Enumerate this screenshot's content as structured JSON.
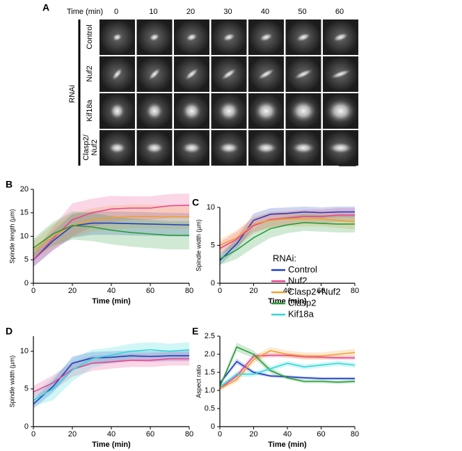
{
  "panel_a": {
    "label": "A",
    "time_label": "Time (min)",
    "times": [
      "0",
      "10",
      "20",
      "30",
      "40",
      "50",
      "60"
    ],
    "group": "RNAi",
    "rows": [
      "Control",
      "Nuf2",
      "Kif18a",
      "Clasp2/ Nuf2"
    ]
  },
  "legend_title": "RNAi:",
  "chart_data": [
    {
      "type": "line",
      "label": "B",
      "x_label": "Time (min)",
      "y_label": "Spindle length (µm)",
      "x": [
        0,
        10,
        20,
        30,
        40,
        50,
        60,
        70,
        80
      ],
      "xlim": [
        0,
        80
      ],
      "xticks": [
        0,
        20,
        40,
        60,
        80
      ],
      "ylim": [
        0,
        20
      ],
      "yticks": [
        0,
        5,
        10,
        15,
        20
      ],
      "series": [
        {
          "name": "Control",
          "color": "#1f3fbf",
          "values": [
            5,
            9,
            12.2,
            12.8,
            12.8,
            12.7,
            12.6,
            12.5,
            12.4
          ],
          "errors": [
            1.5,
            2,
            2.5,
            2.5,
            2.5,
            2.5,
            2.5,
            2.5,
            2.5
          ]
        },
        {
          "name": "Nuf2",
          "color": "#e8458f",
          "values": [
            5,
            9.5,
            13.5,
            15,
            15.8,
            16,
            16,
            16.5,
            16.6
          ],
          "errors": [
            1.5,
            2.5,
            3.5,
            3,
            2.8,
            2.5,
            2.5,
            2.5,
            2.5
          ]
        },
        {
          "name": "Clasp2+Nuf2",
          "color": "#f0a030",
          "values": [
            7,
            10,
            12.3,
            13.5,
            14,
            14.2,
            14.2,
            14.1,
            14.1
          ],
          "errors": [
            2,
            2.5,
            2.5,
            2.5,
            2.5,
            2.5,
            2.5,
            2.5,
            2.5
          ]
        },
        {
          "name": "Clasp2",
          "color": "#2a9d3a",
          "values": [
            7.5,
            10.5,
            12.3,
            12,
            11.3,
            10.8,
            10.5,
            10.2,
            10.2
          ],
          "errors": [
            2,
            2.5,
            3,
            3,
            3,
            3,
            3,
            3,
            3
          ]
        }
      ]
    },
    {
      "type": "line",
      "label": "C",
      "x_label": "Time (min)",
      "y_label": "Spindle width (µm)",
      "x": [
        0,
        10,
        20,
        30,
        40,
        50,
        60,
        70,
        80
      ],
      "xlim": [
        0,
        80
      ],
      "xticks": [
        0,
        20,
        40,
        60,
        80
      ],
      "ylim": [
        0,
        10
      ],
      "yticks": [
        0,
        5,
        10
      ],
      "series": [
        {
          "name": "Control",
          "color": "#1f3fbf",
          "values": [
            3,
            5.2,
            8.3,
            9.1,
            9.2,
            9.4,
            9.3,
            9.4,
            9.4
          ],
          "errors": [
            0.6,
            0.8,
            0.9,
            0.8,
            0.8,
            0.7,
            0.7,
            0.7,
            0.7
          ]
        },
        {
          "name": "Nuf2",
          "color": "#e8458f",
          "values": [
            4.6,
            5.8,
            7.6,
            8.4,
            8.6,
            8.8,
            8.8,
            9,
            9
          ],
          "errors": [
            0.8,
            1,
            1,
            1,
            0.9,
            0.9,
            0.9,
            0.9,
            0.9
          ]
        },
        {
          "name": "Clasp2+Nuf2",
          "color": "#f0a030",
          "values": [
            5,
            6,
            7.8,
            8.3,
            8.5,
            8.5,
            8.5,
            8.3,
            8.1
          ],
          "errors": [
            0.8,
            1,
            1,
            1,
            1,
            1,
            1,
            1,
            1
          ]
        },
        {
          "name": "Clasp2",
          "color": "#2a9d3a",
          "values": [
            3.2,
            4.4,
            6,
            7.2,
            7.7,
            8,
            7.9,
            7.8,
            7.8
          ],
          "errors": [
            0.8,
            1.2,
            1.3,
            1.2,
            1.1,
            1.1,
            1.1,
            1.1,
            1.1
          ]
        }
      ]
    },
    {
      "type": "line",
      "label": "D",
      "x_label": "Time (min)",
      "y_label": "Spindle width (µm)",
      "x": [
        0,
        10,
        20,
        30,
        40,
        50,
        60,
        70,
        80
      ],
      "xlim": [
        0,
        80
      ],
      "xticks": [
        0,
        20,
        40,
        60,
        80
      ],
      "ylim": [
        0,
        12
      ],
      "yticks": [
        0,
        5,
        10
      ],
      "series": [
        {
          "name": "Control",
          "color": "#1f3fbf",
          "values": [
            3,
            5.3,
            8.4,
            9.1,
            9.2,
            9.4,
            9.3,
            9.4,
            9.4
          ],
          "errors": [
            0.6,
            0.8,
            0.9,
            0.8,
            0.8,
            0.7,
            0.7,
            0.7,
            0.7
          ]
        },
        {
          "name": "Nuf2",
          "color": "#e8458f",
          "values": [
            4.6,
            5.8,
            7.6,
            8.4,
            8.6,
            8.8,
            8.8,
            9,
            9
          ],
          "errors": [
            0.8,
            1,
            1,
            1,
            0.9,
            0.9,
            0.9,
            0.9,
            0.9
          ]
        },
        {
          "name": "Kif18a",
          "color": "#30d8d8",
          "values": [
            3.5,
            5,
            7.5,
            9,
            9.5,
            10,
            10.2,
            10,
            10.2
          ],
          "errors": [
            0.8,
            1.5,
            1.5,
            1.2,
            1,
            1,
            1,
            1,
            1
          ]
        }
      ]
    },
    {
      "type": "line",
      "label": "E",
      "x_label": "Time (min)",
      "y_label": "Aspect ratio",
      "x": [
        0,
        10,
        20,
        30,
        40,
        50,
        60,
        70,
        80
      ],
      "xlim": [
        0,
        80
      ],
      "xticks": [
        0,
        20,
        40,
        60,
        80
      ],
      "ylim": [
        0,
        2.5
      ],
      "yticks": [
        0,
        0.5,
        {
          "value": 1,
          "label": "1.0"
        },
        1.5,
        {
          "value": 2,
          "label": "2.0"
        },
        2.5
      ],
      "series": [
        {
          "name": "Control",
          "color": "#1f3fbf",
          "values": [
            1.2,
            1.8,
            1.5,
            1.4,
            1.38,
            1.35,
            1.33,
            1.33,
            1.33
          ],
          "errors": [
            0.05,
            0.08,
            0.05,
            0.04,
            0.04,
            0.04,
            0.04,
            0.04,
            0.04
          ]
        },
        {
          "name": "Nuf2",
          "color": "#e8458f",
          "values": [
            1.05,
            1.4,
            1.95,
            1.97,
            1.97,
            1.93,
            1.92,
            1.9,
            1.9
          ],
          "errors": [
            0.05,
            0.08,
            0.07,
            0.06,
            0.06,
            0.06,
            0.06,
            0.06,
            0.06
          ]
        },
        {
          "name": "Clasp2+Nuf2",
          "color": "#f0a030",
          "values": [
            1.05,
            1.3,
            1.85,
            2.1,
            2,
            1.95,
            1.95,
            2,
            2.05
          ],
          "errors": [
            0.05,
            0.08,
            0.1,
            0.1,
            0.1,
            0.1,
            0.1,
            0.1,
            0.1
          ]
        },
        {
          "name": "Clasp2",
          "color": "#2a9d3a",
          "values": [
            1.1,
            2.2,
            2,
            1.55,
            1.35,
            1.25,
            1.25,
            1.23,
            1.25
          ],
          "errors": [
            0.05,
            0.12,
            0.1,
            0.08,
            0.05,
            0.05,
            0.05,
            0.05,
            0.05
          ]
        },
        {
          "name": "Kif18a",
          "color": "#30d8d8",
          "values": [
            1.1,
            1.45,
            1.45,
            1.6,
            1.75,
            1.65,
            1.7,
            1.75,
            1.7
          ],
          "errors": [
            0.05,
            0.08,
            0.07,
            0.07,
            0.07,
            0.07,
            0.07,
            0.07,
            0.07
          ]
        }
      ]
    }
  ]
}
